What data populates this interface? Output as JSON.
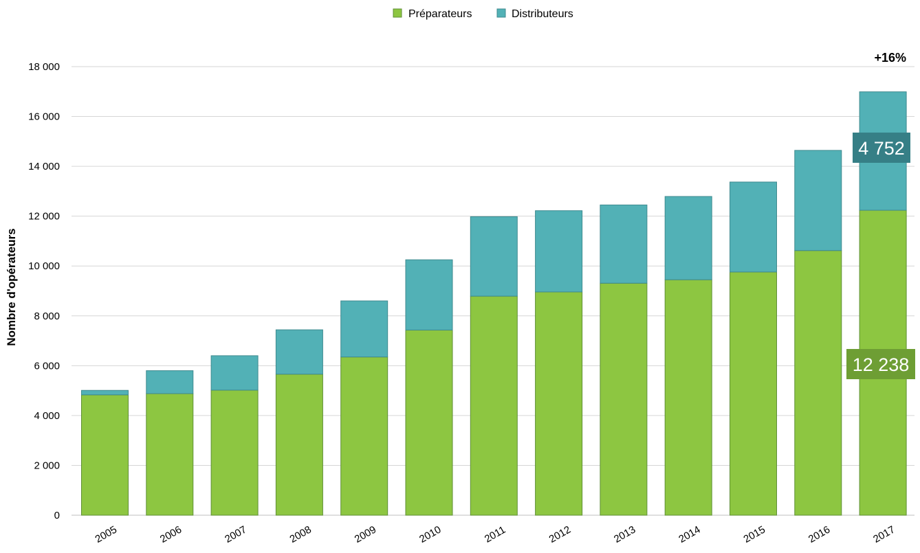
{
  "chart_data": {
    "type": "bar",
    "stacked": true,
    "title": "",
    "xlabel": "",
    "ylabel": "Nombre d'opérateurs",
    "ylim": [
      0,
      18000
    ],
    "yticks": [
      0,
      2000,
      4000,
      6000,
      8000,
      10000,
      12000,
      14000,
      16000,
      18000
    ],
    "ytick_labels": [
      "0",
      "2 000",
      "4 000",
      "6 000",
      "8 000",
      "10 000",
      "12 000",
      "14 000",
      "16 000",
      "18 000"
    ],
    "grid": "horizontal",
    "legend_position": "top-center",
    "categories": [
      "2005",
      "2006",
      "2007",
      "2008",
      "2009",
      "2010",
      "2011",
      "2012",
      "2013",
      "2014",
      "2015",
      "2016",
      "2017"
    ],
    "series": [
      {
        "name": "Préparateurs",
        "color": "#8dc641",
        "values": [
          4830,
          4880,
          5020,
          5660,
          6350,
          7430,
          8790,
          8960,
          9310,
          9450,
          9760,
          10620,
          12238
        ]
      },
      {
        "name": "Distributeurs",
        "color": "#52b1b6",
        "values": [
          180,
          920,
          1380,
          1780,
          2250,
          2820,
          3190,
          3260,
          3140,
          3340,
          3610,
          4020,
          4752
        ]
      }
    ],
    "annotations": {
      "growth": "+16%",
      "callout_top": "4 752",
      "callout_bottom": "12 238"
    }
  },
  "colors": {
    "preparateurs": "#8dc641",
    "distributeurs": "#52b1b6",
    "callout_top_bg": "#367f86",
    "callout_bottom_bg": "#6e9e34",
    "grid": "#d6d6d6",
    "bar_edge": "#4f6f3a"
  }
}
